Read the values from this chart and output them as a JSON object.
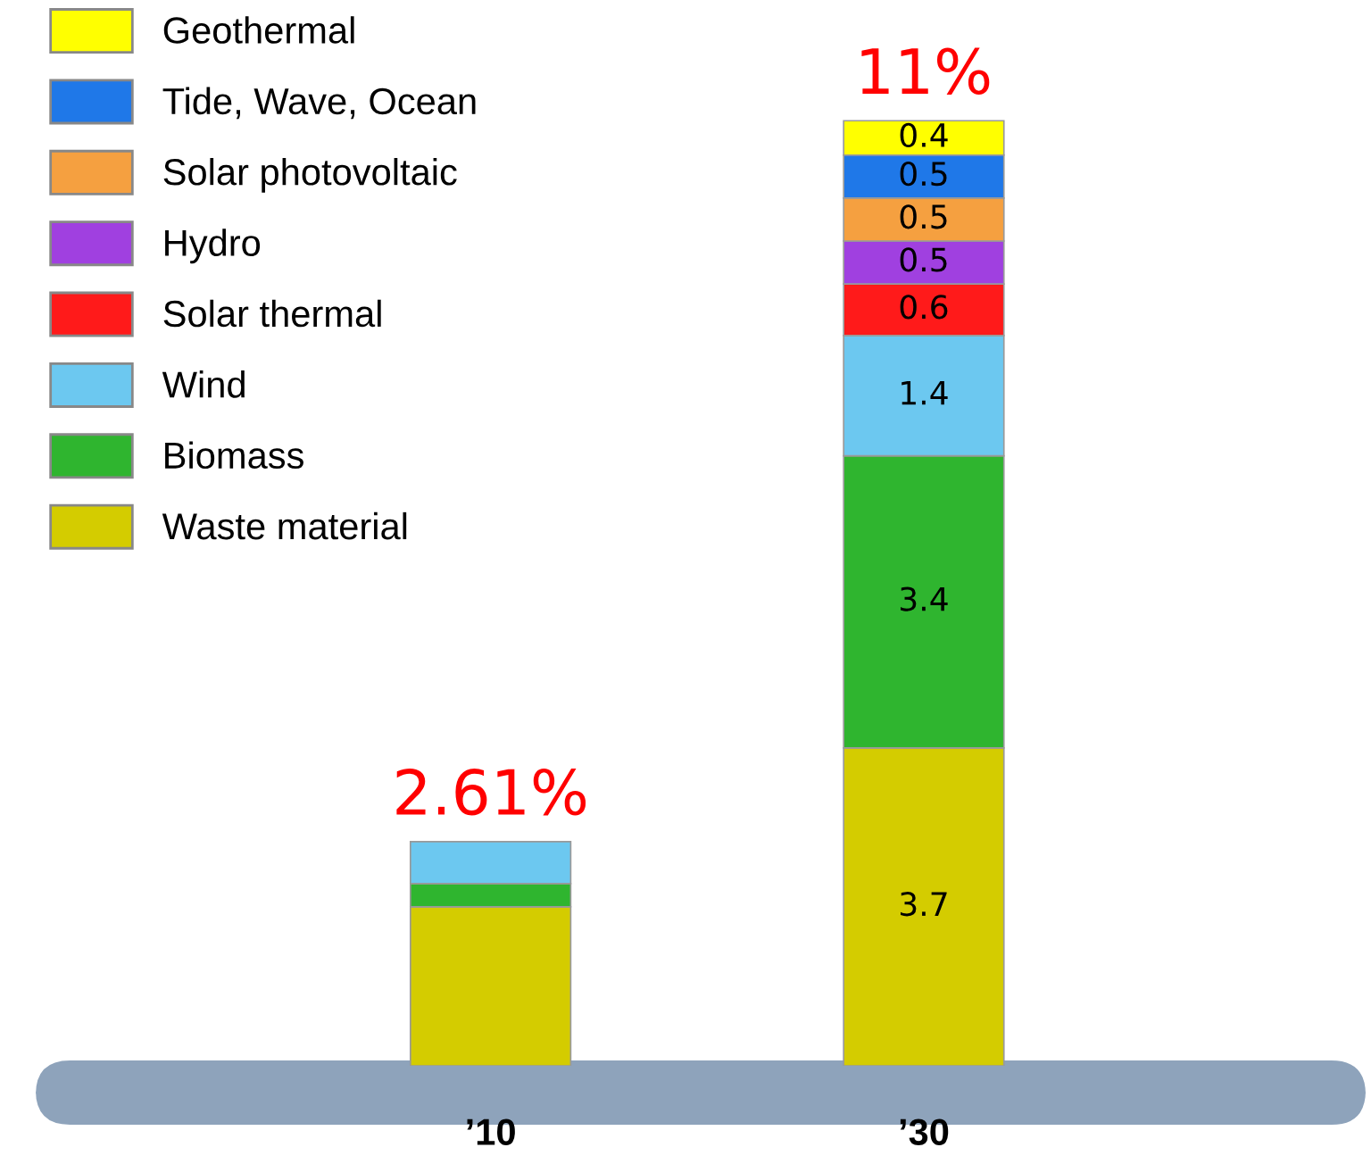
{
  "chart_data": {
    "type": "bar",
    "stacked": true,
    "categories": [
      "’10",
      "’30"
    ],
    "legend": "top left",
    "totals": [
      "2.61%",
      "11%"
    ],
    "series": [
      {
        "name": "Waste material",
        "color": "#d4cc00",
        "values": [
          1.85,
          3.7
        ],
        "value_labels": [
          null,
          "3.7"
        ]
      },
      {
        "name": "Biomass",
        "color": "#2fb52f",
        "values": [
          0.27,
          3.4
        ],
        "value_labels": [
          null,
          "3.4"
        ]
      },
      {
        "name": "Wind",
        "color": "#6cc8f0",
        "values": [
          0.49,
          1.4
        ],
        "value_labels": [
          null,
          "1.4"
        ]
      },
      {
        "name": "Solar thermal",
        "color": "#ff1a1a",
        "values": [
          null,
          0.6
        ],
        "value_labels": [
          null,
          "0.6"
        ]
      },
      {
        "name": "Hydro",
        "color": "#a040e0",
        "values": [
          null,
          0.5
        ],
        "value_labels": [
          null,
          "0.5"
        ]
      },
      {
        "name": "Solar photovoltaic",
        "color": "#f5a040",
        "values": [
          null,
          0.5
        ],
        "value_labels": [
          null,
          "0.5"
        ]
      },
      {
        "name": "Tide, Wave, Ocean",
        "color": "#1f78e8",
        "values": [
          null,
          0.5
        ],
        "value_labels": [
          null,
          "0.5"
        ]
      },
      {
        "name": "Geothermal",
        "color": "#ffff00",
        "values": [
          null,
          0.4
        ],
        "value_labels": [
          null,
          "0.4"
        ]
      }
    ]
  }
}
